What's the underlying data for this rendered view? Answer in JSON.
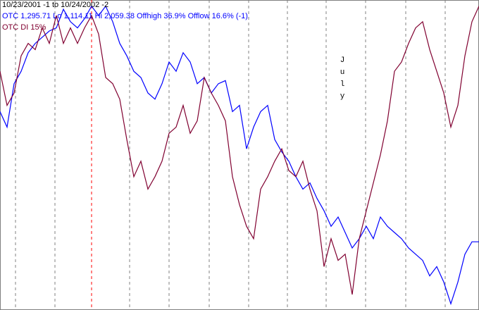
{
  "chart_data": {
    "type": "line",
    "title": "10/23/2001 -1 to 10/24/2002 -2",
    "annotation": "July",
    "x": [
      0,
      1,
      2,
      3,
      4,
      5,
      6,
      7,
      8,
      9,
      10,
      11,
      12,
      13,
      14,
      15,
      16,
      17,
      18,
      19,
      20,
      21,
      22,
      23,
      24,
      25,
      26,
      27,
      28,
      29,
      30,
      31,
      32,
      33,
      34,
      35,
      36,
      37,
      38,
      39,
      40,
      41,
      42,
      43,
      44,
      45,
      46,
      47,
      48,
      49,
      50,
      51,
      52,
      53,
      54,
      55,
      56,
      57,
      58,
      59,
      60,
      61,
      62,
      63,
      64,
      65,
      66,
      67,
      68
    ],
    "xlim": [
      0,
      68
    ],
    "xticks": [
      2.2,
      7.8,
      13,
      18.4,
      24,
      29.7,
      35.3,
      40.8,
      46.3,
      51.9,
      57.6,
      63.2
    ],
    "highlight_tick": 13,
    "grid": true,
    "ylim": [
      0,
      100
    ],
    "series": [
      {
        "name": "OTC 1,295.71 Lo 1,114.11 Hi 2,059.38 Offhigh 36.9% Offlow 16.6% (-1)",
        "color": "#0000ff",
        "values": [
          64,
          59,
          73,
          77,
          83,
          86,
          88,
          90,
          91,
          97,
          93,
          91,
          94,
          98,
          95,
          98,
          93,
          86,
          82,
          77,
          75,
          70,
          68,
          73,
          80,
          77,
          83,
          80,
          73,
          75,
          70,
          73,
          74,
          64,
          66,
          52,
          59,
          64,
          66,
          55,
          51,
          48,
          43,
          39,
          41,
          36,
          32,
          27,
          30,
          25,
          20,
          23,
          27,
          23,
          30,
          27,
          25,
          23,
          20,
          18,
          16,
          11,
          14,
          9,
          2,
          9,
          18,
          22,
          22
        ]
      },
      {
        "name": "OTC DI 15%",
        "color": "#800030",
        "values": [
          77,
          66,
          70,
          82,
          86,
          84,
          91,
          86,
          95,
          86,
          91,
          86,
          91,
          95,
          89,
          75,
          73,
          68,
          55,
          43,
          48,
          39,
          43,
          48,
          57,
          59,
          66,
          57,
          61,
          75,
          70,
          66,
          61,
          43,
          34,
          27,
          23,
          39,
          43,
          48,
          52,
          45,
          43,
          48,
          39,
          32,
          14,
          23,
          16,
          18,
          5,
          23,
          32,
          41,
          50,
          61,
          77,
          80,
          86,
          91,
          93,
          84,
          77,
          70,
          59,
          66,
          82,
          93,
          98
        ]
      }
    ]
  }
}
